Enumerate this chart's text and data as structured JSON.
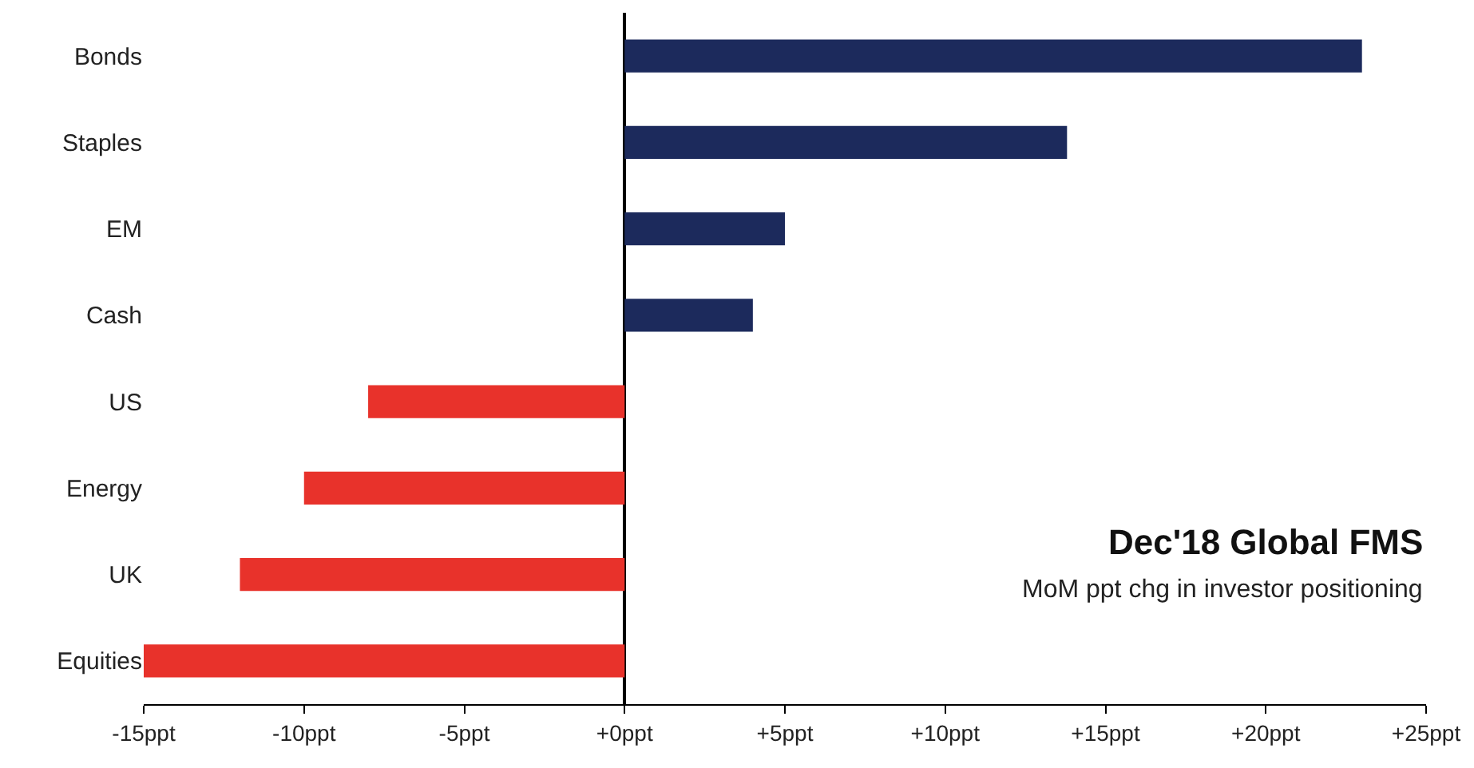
{
  "chart_data": {
    "type": "bar",
    "orientation": "horizontal",
    "title": "Dec'18 Global FMS",
    "subtitle": "MoM ppt chg in investor positioning",
    "categories": [
      "Bonds",
      "Staples",
      "EM",
      "Cash",
      "US",
      "Energy",
      "UK",
      "Equities"
    ],
    "values": [
      23,
      13.8,
      5,
      4,
      -8,
      -10,
      -12,
      -15
    ],
    "colors": [
      "#1c2a5c",
      "#1c2a5c",
      "#1c2a5c",
      "#1c2a5c",
      "#e8322b",
      "#e8322b",
      "#e8322b",
      "#e8322b"
    ],
    "xlim": [
      -15,
      25
    ],
    "xticks": [
      {
        "value": -15,
        "label": "-15ppt"
      },
      {
        "value": -10,
        "label": "-10ppt"
      },
      {
        "value": -5,
        "label": "-5ppt"
      },
      {
        "value": 0,
        "label": "+0ppt"
      },
      {
        "value": 5,
        "label": "+5ppt"
      },
      {
        "value": 10,
        "label": "+10ppt"
      },
      {
        "value": 15,
        "label": "+15ppt"
      },
      {
        "value": 20,
        "label": "+20ppt"
      },
      {
        "value": 25,
        "label": "+25ppt"
      }
    ],
    "legend": false
  }
}
